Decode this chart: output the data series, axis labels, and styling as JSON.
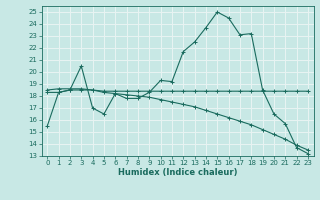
{
  "xlabel": "Humidex (Indice chaleur)",
  "xlim": [
    -0.5,
    23.5
  ],
  "ylim": [
    13,
    25.5
  ],
  "yticks": [
    13,
    14,
    15,
    16,
    17,
    18,
    19,
    20,
    21,
    22,
    23,
    24,
    25
  ],
  "xticks": [
    0,
    1,
    2,
    3,
    4,
    5,
    6,
    7,
    8,
    9,
    10,
    11,
    12,
    13,
    14,
    15,
    16,
    17,
    18,
    19,
    20,
    21,
    22,
    23
  ],
  "bg_color": "#c8e8e5",
  "grid_color": "#e8f4f3",
  "line_color": "#1a6b5e",
  "line1_x": [
    0,
    1,
    2,
    3,
    4,
    5,
    6,
    7,
    8,
    9,
    10,
    11,
    12,
    13,
    14,
    15,
    16,
    17,
    18,
    19,
    20,
    21,
    22,
    23
  ],
  "line1_y": [
    15.5,
    18.3,
    18.5,
    20.5,
    17.0,
    16.5,
    18.2,
    17.8,
    17.8,
    18.3,
    19.3,
    19.2,
    21.7,
    22.5,
    23.7,
    25.0,
    24.5,
    23.1,
    23.2,
    18.5,
    16.5,
    15.7,
    13.7,
    13.2
  ],
  "line2_x": [
    0,
    1,
    2,
    3,
    4,
    5,
    6,
    7,
    8,
    9,
    10,
    11,
    12,
    13,
    14,
    15,
    16,
    17,
    18,
    19,
    20,
    21,
    22,
    23
  ],
  "line2_y": [
    18.3,
    18.3,
    18.5,
    18.5,
    18.5,
    18.4,
    18.4,
    18.4,
    18.4,
    18.4,
    18.4,
    18.4,
    18.4,
    18.4,
    18.4,
    18.4,
    18.4,
    18.4,
    18.4,
    18.4,
    18.4,
    18.4,
    18.4,
    18.4
  ],
  "line3_x": [
    0,
    1,
    2,
    3,
    4,
    5,
    6,
    7,
    8,
    9,
    10,
    11,
    12,
    13,
    14,
    15,
    16,
    17,
    18,
    19,
    20,
    21,
    22,
    23
  ],
  "line3_y": [
    18.5,
    18.6,
    18.6,
    18.6,
    18.5,
    18.3,
    18.2,
    18.1,
    18.0,
    17.9,
    17.7,
    17.5,
    17.3,
    17.1,
    16.8,
    16.5,
    16.2,
    15.9,
    15.6,
    15.2,
    14.8,
    14.4,
    13.9,
    13.5
  ],
  "xlabel_fontsize": 6,
  "tick_fontsize": 5
}
